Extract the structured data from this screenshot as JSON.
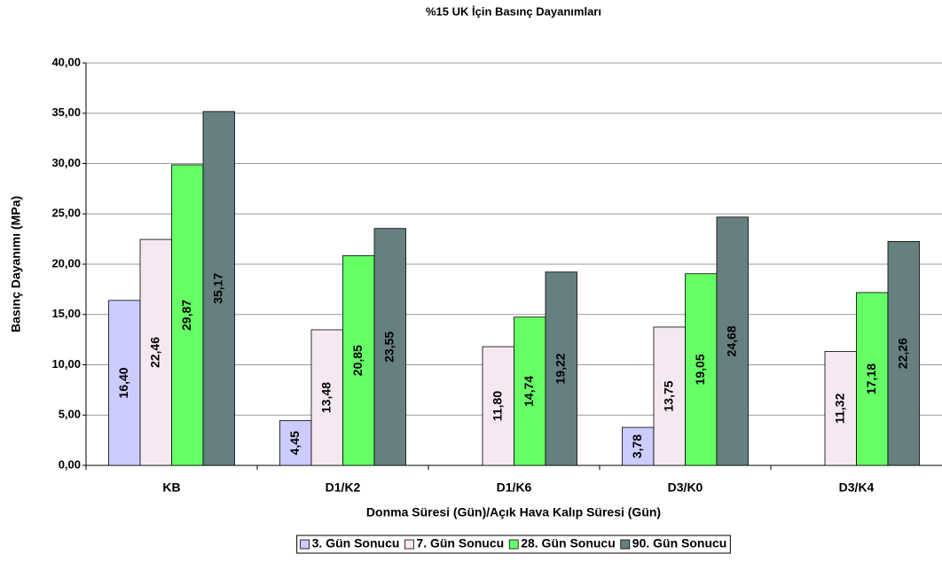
{
  "chart_data": {
    "type": "bar",
    "title": "%15 UK İçin Basınç Dayanımları",
    "x_label": "Donma Süresi (Gün)/Açık Hava Kalıp Süresi (Gün)",
    "y_label": "Basınç Dayanımı (MPa)",
    "categories": [
      "KB",
      "D1/K2",
      "D1/K6",
      "D3/K0",
      "D3/K4"
    ],
    "series": [
      {
        "name": "3. Gün Sonucu",
        "color": "#ccccff",
        "values": [
          16.4,
          4.45,
          null,
          3.78,
          null
        ],
        "value_labels": [
          "16,40",
          "4,45",
          null,
          "3,78",
          null
        ]
      },
      {
        "name": "7. Gün Sonucu",
        "color": "#f6e8f0",
        "values": [
          22.46,
          13.48,
          11.8,
          13.75,
          11.32
        ],
        "value_labels": [
          "22,46",
          "13,48",
          "11,80",
          "13,75",
          "11,32"
        ]
      },
      {
        "name": "28. Gün Sonucu",
        "color": "#66ff66",
        "values": [
          29.87,
          20.85,
          14.74,
          19.05,
          17.18
        ],
        "value_labels": [
          "29,87",
          "20,85",
          "14,74",
          "19,05",
          "17,18"
        ]
      },
      {
        "name": "90. Gün Sonucu",
        "color": "#668080",
        "values": [
          35.17,
          23.55,
          19.22,
          24.68,
          22.26
        ],
        "value_labels": [
          "35,17",
          "23,55",
          "19,22",
          "24,68",
          "22,26"
        ]
      }
    ],
    "ylim": [
      0,
      40
    ],
    "yticks": [
      {
        "value": 0,
        "label": "0,00"
      },
      {
        "value": 5,
        "label": "5,00"
      },
      {
        "value": 10,
        "label": "10,00"
      },
      {
        "value": 15,
        "label": "15,00"
      },
      {
        "value": 20,
        "label": "20,00"
      },
      {
        "value": 25,
        "label": "25,00"
      },
      {
        "value": 30,
        "label": "30,00"
      },
      {
        "value": 35,
        "label": "35,00"
      },
      {
        "value": 40,
        "label": "40,00"
      }
    ],
    "grid": true,
    "legend": "bottom"
  }
}
